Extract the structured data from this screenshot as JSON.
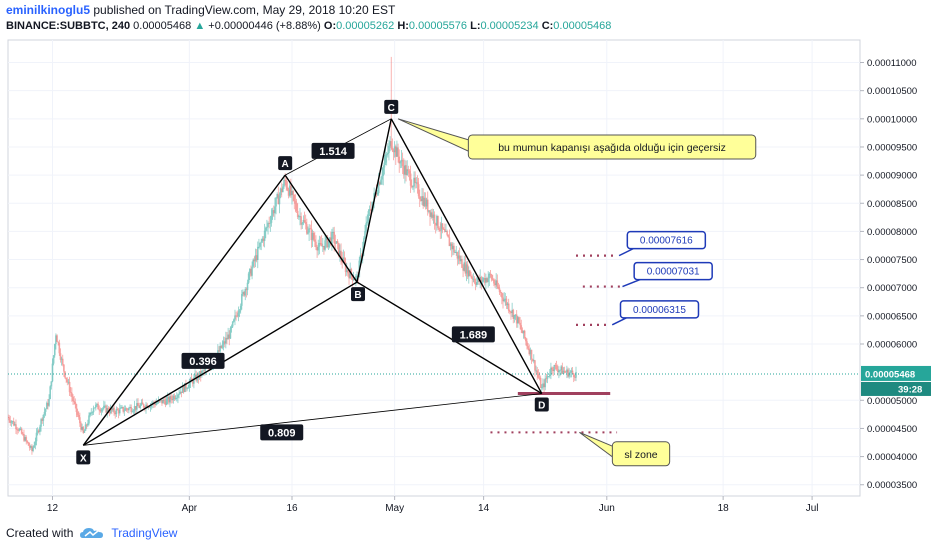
{
  "header": {
    "user": "eminilkinoglu5",
    "published_text": "published on TradingView.com, May 29, 2018 10:20 EST",
    "symbol": "BINANCE:SUBBTC, 240",
    "price": "0.00005468",
    "change": "+0.00000446 (+8.88%)",
    "o_label": "O:",
    "o_value": "0.00005262",
    "h_label": "H:",
    "h_value": "0.00005576",
    "l_label": "L:",
    "l_value": "0.00005234",
    "c_label": "C:",
    "c_value": "0.00005468"
  },
  "footer": {
    "created_with": "Created with",
    "brand": "TradingView"
  },
  "colors": {
    "up": "#26a69a",
    "down": "#ef5350",
    "accent": "#2962ff",
    "callout": "#ffff99",
    "pattern": "#000000",
    "sl_line": "#a0405e"
  },
  "chart_data": {
    "type": "candlestick",
    "y_axis_ticks": [
      "0.00011000",
      "0.00010500",
      "0.00010000",
      "0.00009500",
      "0.00009000",
      "0.00008500",
      "0.00008000",
      "0.00007500",
      "0.00007000",
      "0.00006500",
      "0.00006000",
      "0.00005000",
      "0.00004500",
      "0.00004000",
      "0.00003500"
    ],
    "ylim": [
      3.3e-05,
      0.000114
    ],
    "current_price_label": "0.00005468",
    "countdown_label": "39:28",
    "x_axis_ticks": [
      {
        "label": "12",
        "day": 0
      },
      {
        "label": "Apr",
        "day": 20
      },
      {
        "label": "16",
        "day": 35
      },
      {
        "label": "May",
        "day": 50
      },
      {
        "label": "14",
        "day": 63
      },
      {
        "label": "Jun",
        "day": 81
      },
      {
        "label": "18",
        "day": 98
      },
      {
        "label": "Jul",
        "day": 111
      }
    ],
    "xlim": [
      -6.5,
      118
    ],
    "harmonic_points": [
      {
        "label": "X",
        "day": 4.5,
        "price": 4.2e-05
      },
      {
        "label": "A",
        "day": 34,
        "price": 9e-05
      },
      {
        "label": "B",
        "day": 44.5,
        "price": 7.1e-05
      },
      {
        "label": "C",
        "day": 49.5,
        "price": 0.0001
      },
      {
        "label": "D",
        "day": 71.5,
        "price": 5.12e-05
      }
    ],
    "ratios": [
      {
        "label": "0.396",
        "day": 22,
        "price": 5.7e-05
      },
      {
        "label": "1.514",
        "day": 41,
        "price": 9.43e-05
      },
      {
        "label": "1.689",
        "day": 61.5,
        "price": 6.17e-05
      },
      {
        "label": "0.809",
        "day": 33.5,
        "price": 4.43e-05
      }
    ],
    "target_levels": [
      {
        "label": "0.00007616",
        "price": 7.57e-05,
        "from_day": 76.5,
        "to_day": 82.5,
        "box_day": 84
      },
      {
        "label": "0.00007031",
        "price": 7.02e-05,
        "from_day": 77.5,
        "to_day": 83,
        "box_day": 85
      },
      {
        "label": "0.00006315",
        "price": 6.34e-05,
        "from_day": 76.5,
        "to_day": 81.5,
        "box_day": 83
      }
    ],
    "sl_level": {
      "price": 4.43e-05,
      "from_day": 64,
      "to_day": 82.5
    },
    "sl_zone_segment": {
      "price": 5.12e-05,
      "from_day": 68,
      "to_day": 81.5
    },
    "annotations": [
      {
        "label": "bu mumun kapanışı aşağıda olduğu için geçersiz",
        "anchor_day": 50.5,
        "anchor_price": 0.0001,
        "box_day": 73,
        "box_price": 9.5e-05
      },
      {
        "label": "sl zone",
        "anchor_day": 77,
        "anchor_price": 4.43e-05,
        "box_day": 86,
        "box_price": 4.05e-05
      }
    ],
    "path_anchors": [
      [
        -6.5,
        4.7e-05
      ],
      [
        -5,
        4.5e-05
      ],
      [
        -3,
        4.1e-05
      ],
      [
        -1.5,
        4.7e-05
      ],
      [
        -0.5,
        5e-05
      ],
      [
        0.5,
        6.2e-05
      ],
      [
        1.5,
        5.6e-05
      ],
      [
        3,
        5e-05
      ],
      [
        4.5,
        4.4e-05
      ],
      [
        6,
        4.9e-05
      ],
      [
        9,
        4.8e-05
      ],
      [
        13,
        4.9e-05
      ],
      [
        17,
        5e-05
      ],
      [
        20,
        5.3e-05
      ],
      [
        23,
        5.6e-05
      ],
      [
        26,
        6.2e-05
      ],
      [
        29,
        7.3e-05
      ],
      [
        32,
        8.3e-05
      ],
      [
        34,
        8.9e-05
      ],
      [
        36,
        8.3e-05
      ],
      [
        39,
        7.7e-05
      ],
      [
        41,
        7.9e-05
      ],
      [
        43,
        7.3e-05
      ],
      [
        44.5,
        7.15e-05
      ],
      [
        46,
        8.2e-05
      ],
      [
        48,
        9e-05
      ],
      [
        49.5,
        9.6e-05
      ],
      [
        51,
        9.2e-05
      ],
      [
        54,
        8.6e-05
      ],
      [
        57,
        8e-05
      ],
      [
        60,
        7.4e-05
      ],
      [
        62,
        7.1e-05
      ],
      [
        64,
        7.2e-05
      ],
      [
        66,
        6.8e-05
      ],
      [
        68,
        6.4e-05
      ],
      [
        70,
        5.8e-05
      ],
      [
        71.5,
        5.2e-05
      ],
      [
        73,
        5.6e-05
      ],
      [
        75,
        5.5e-05
      ],
      [
        76.5,
        5.47e-05
      ]
    ]
  }
}
